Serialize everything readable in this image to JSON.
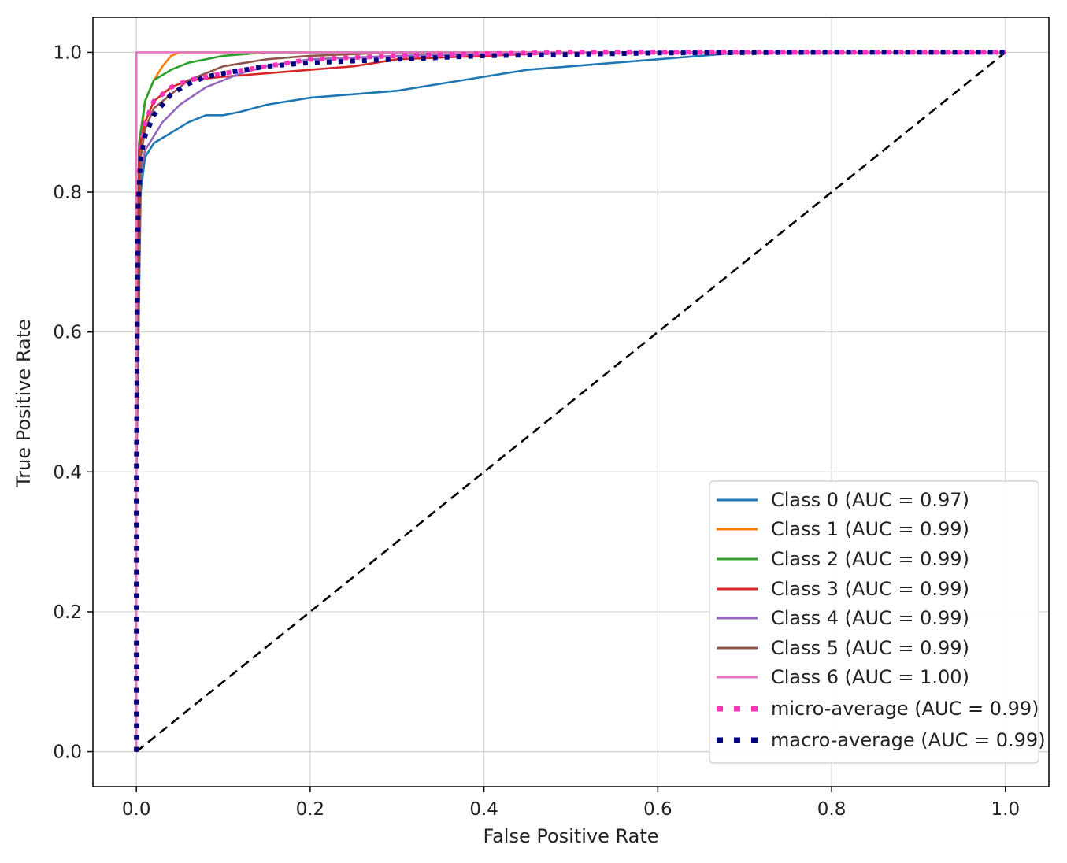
{
  "chart_data": {
    "type": "line",
    "title": "",
    "xlabel": "False Positive Rate",
    "ylabel": "True Positive Rate",
    "xlim": [
      -0.05,
      1.05
    ],
    "ylim": [
      -0.05,
      1.05
    ],
    "x_ticks": [
      0.0,
      0.2,
      0.4,
      0.6,
      0.8,
      1.0
    ],
    "y_ticks": [
      0.0,
      0.2,
      0.4,
      0.6,
      0.8,
      1.0
    ],
    "x_tick_labels": [
      "0.0",
      "0.2",
      "0.4",
      "0.6",
      "0.8",
      "1.0"
    ],
    "y_tick_labels": [
      "0.0",
      "0.2",
      "0.4",
      "0.6",
      "0.8",
      "1.0"
    ],
    "grid": true,
    "legend_position": "lower-right",
    "series": [
      {
        "name": "Class 0 (AUC = 0.97)",
        "color": "#1f77b4",
        "style": "solid",
        "x": [
          0.0,
          0.0,
          0.005,
          0.01,
          0.02,
          0.04,
          0.06,
          0.08,
          0.1,
          0.12,
          0.15,
          0.2,
          0.25,
          0.3,
          0.35,
          0.4,
          0.45,
          0.5,
          0.55,
          0.6,
          0.7,
          0.8,
          0.9,
          1.0
        ],
        "y": [
          0.0,
          0.4,
          0.8,
          0.85,
          0.87,
          0.885,
          0.9,
          0.91,
          0.91,
          0.915,
          0.925,
          0.935,
          0.94,
          0.945,
          0.955,
          0.965,
          0.975,
          0.98,
          0.985,
          0.99,
          1.0,
          1.0,
          1.0,
          1.0
        ]
      },
      {
        "name": "Class 1 (AUC = 0.99)",
        "color": "#ff7f0e",
        "style": "solid",
        "x": [
          0.0,
          0.0,
          0.003,
          0.01,
          0.02,
          0.03,
          0.04,
          0.05,
          0.2,
          0.5,
          1.0
        ],
        "y": [
          0.0,
          0.4,
          0.85,
          0.93,
          0.96,
          0.98,
          0.995,
          1.0,
          1.0,
          1.0,
          1.0
        ]
      },
      {
        "name": "Class 2 (AUC = 0.99)",
        "color": "#2ca02c",
        "style": "solid",
        "x": [
          0.0,
          0.0,
          0.003,
          0.01,
          0.02,
          0.04,
          0.06,
          0.08,
          0.1,
          0.15,
          0.2,
          0.5,
          1.0
        ],
        "y": [
          0.0,
          0.4,
          0.87,
          0.93,
          0.96,
          0.975,
          0.985,
          0.99,
          0.995,
          1.0,
          1.0,
          1.0,
          1.0
        ]
      },
      {
        "name": "Class 3 (AUC = 0.99)",
        "color": "#d62728",
        "style": "solid",
        "x": [
          0.0,
          0.0,
          0.003,
          0.01,
          0.02,
          0.04,
          0.06,
          0.1,
          0.15,
          0.2,
          0.25,
          0.3,
          0.4,
          0.5,
          1.0
        ],
        "y": [
          0.0,
          0.4,
          0.86,
          0.9,
          0.93,
          0.95,
          0.96,
          0.965,
          0.97,
          0.975,
          0.98,
          0.99,
          0.995,
          1.0,
          1.0
        ]
      },
      {
        "name": "Class 4 (AUC = 0.99)",
        "color": "#9467bd",
        "style": "solid",
        "x": [
          0.0,
          0.0,
          0.005,
          0.01,
          0.02,
          0.03,
          0.05,
          0.08,
          0.12,
          0.15,
          0.2,
          0.3,
          0.5,
          1.0
        ],
        "y": [
          0.0,
          0.4,
          0.83,
          0.86,
          0.88,
          0.9,
          0.925,
          0.95,
          0.97,
          0.98,
          0.99,
          0.995,
          1.0,
          1.0
        ]
      },
      {
        "name": "Class 5 (AUC = 0.99)",
        "color": "#8c564b",
        "style": "solid",
        "x": [
          0.0,
          0.0,
          0.005,
          0.01,
          0.02,
          0.04,
          0.06,
          0.1,
          0.15,
          0.2,
          0.3,
          0.5,
          1.0
        ],
        "y": [
          0.0,
          0.4,
          0.85,
          0.89,
          0.92,
          0.94,
          0.96,
          0.98,
          0.99,
          0.995,
          1.0,
          1.0,
          1.0
        ]
      },
      {
        "name": "Class 6 (AUC = 1.00)",
        "color": "#e377c2",
        "style": "solid",
        "x": [
          0.0,
          0.0,
          0.5,
          1.0
        ],
        "y": [
          0.0,
          1.0,
          1.0,
          1.0
        ]
      },
      {
        "name": "micro-average (AUC = 0.99)",
        "color": "#ff33bb",
        "style": "dotted",
        "x": [
          0.0,
          0.0,
          0.002,
          0.005,
          0.01,
          0.02,
          0.04,
          0.06,
          0.08,
          0.1,
          0.15,
          0.2,
          0.3,
          0.4,
          0.5,
          1.0
        ],
        "y": [
          0.0,
          0.4,
          0.8,
          0.86,
          0.9,
          0.93,
          0.95,
          0.96,
          0.965,
          0.97,
          0.98,
          0.99,
          0.995,
          0.998,
          1.0,
          1.0
        ]
      },
      {
        "name": "macro-average (AUC = 0.99)",
        "color": "#000080",
        "style": "dotted",
        "x": [
          0.0,
          0.0,
          0.002,
          0.005,
          0.01,
          0.02,
          0.04,
          0.06,
          0.08,
          0.1,
          0.15,
          0.2,
          0.3,
          0.4,
          0.5,
          0.6,
          0.8,
          1.0
        ],
        "y": [
          0.0,
          0.4,
          0.78,
          0.85,
          0.88,
          0.91,
          0.94,
          0.955,
          0.965,
          0.97,
          0.98,
          0.985,
          0.99,
          0.995,
          0.997,
          0.999,
          1.0,
          1.0
        ]
      }
    ],
    "reference_line": {
      "x": [
        0.0,
        1.0
      ],
      "y": [
        0.0,
        1.0
      ],
      "color": "#000000",
      "style": "dashed"
    }
  }
}
